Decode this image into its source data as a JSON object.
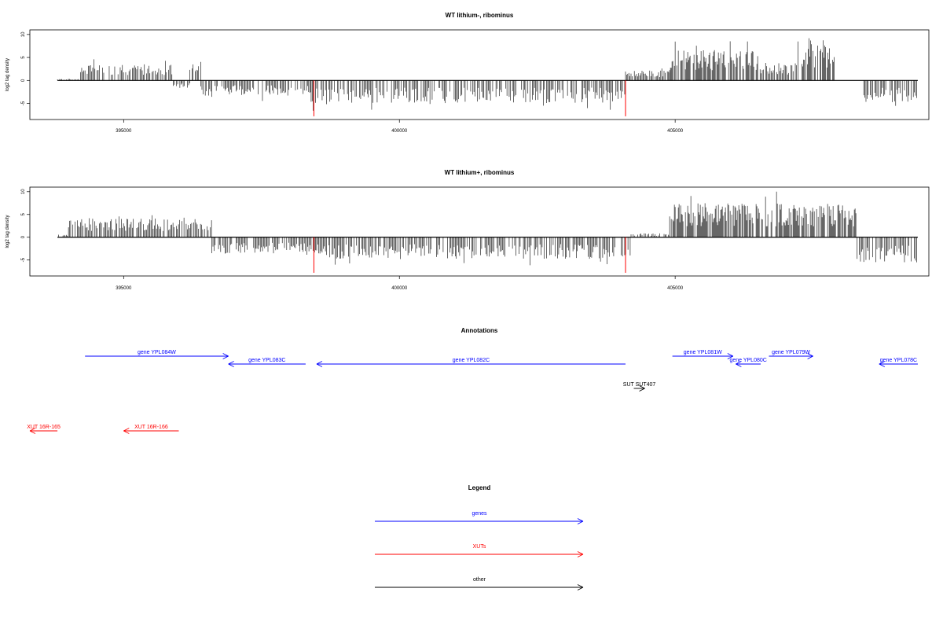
{
  "colors": {
    "gene": "#0000ff",
    "xut": "#ff0000",
    "other": "#000000",
    "marker": "#ff0000"
  },
  "chart_data": [
    {
      "type": "bar",
      "title": "WT lithium-, ribominus",
      "ylabel": "log2 tag density",
      "xlim": [
        393300,
        409600
      ],
      "ylim": [
        -8.5,
        11
      ],
      "x_ticks": [
        395000,
        400000,
        405000
      ],
      "y_ticks": [
        -5,
        0,
        5,
        10
      ],
      "baseline_range": [
        393800,
        409400
      ],
      "marker_lines": [
        {
          "x": 398450,
          "y": -7.8
        },
        {
          "x": 404100,
          "y": -7.8
        }
      ],
      "series": [
        {
          "x_start": 393800,
          "x_end": 394200,
          "envelope": 0.3
        },
        {
          "x_start": 394200,
          "x_end": 395900,
          "envelope": 3.2
        },
        {
          "x_start": 395900,
          "x_end": 396200,
          "envelope": -1.5
        },
        {
          "x_start": 396200,
          "x_end": 396400,
          "envelope": 4.3
        },
        {
          "x_start": 396400,
          "x_end": 398400,
          "envelope": -3.0
        },
        {
          "x_start": 398400,
          "x_end": 404100,
          "envelope": -4.5
        },
        {
          "x_start": 404100,
          "x_end": 404900,
          "envelope": 2.0
        },
        {
          "x_start": 404900,
          "x_end": 406500,
          "envelope": 6.0
        },
        {
          "x_start": 406500,
          "x_end": 407200,
          "envelope": 3.5
        },
        {
          "x_start": 407200,
          "x_end": 407900,
          "envelope": 8.0
        },
        {
          "x_start": 407900,
          "x_end": 408400,
          "envelope": 0.0
        },
        {
          "x_start": 408400,
          "x_end": 409400,
          "envelope": -4.3
        }
      ]
    },
    {
      "type": "bar",
      "title": "WT lithium+, ribominus",
      "ylabel": "log2 tag density",
      "xlim": [
        393300,
        409600
      ],
      "ylim": [
        -8.5,
        11
      ],
      "x_ticks": [
        395000,
        400000,
        405000
      ],
      "y_ticks": [
        -5,
        0,
        5,
        10
      ],
      "baseline_range": [
        393800,
        409400
      ],
      "marker_lines": [
        {
          "x": 398450,
          "y": -7.8
        },
        {
          "x": 404100,
          "y": -7.8
        }
      ],
      "series": [
        {
          "x_start": 393800,
          "x_end": 394000,
          "envelope": 0.5
        },
        {
          "x_start": 394000,
          "x_end": 396600,
          "envelope": 3.8
        },
        {
          "x_start": 396600,
          "x_end": 398300,
          "envelope": -3.2
        },
        {
          "x_start": 398300,
          "x_end": 404200,
          "envelope": -4.3
        },
        {
          "x_start": 404200,
          "x_end": 404900,
          "envelope": 0.8
        },
        {
          "x_start": 404900,
          "x_end": 408300,
          "envelope": 6.8
        },
        {
          "x_start": 408300,
          "x_end": 409400,
          "envelope": -5.0
        }
      ]
    }
  ],
  "annotations": {
    "title": "Annotations",
    "features": [
      {
        "label": "gene YPL084W",
        "start": 394300,
        "end": 396900,
        "dir": "+",
        "kind": "gene",
        "row": 0
      },
      {
        "label": "gene YPL083C",
        "start": 396900,
        "end": 398300,
        "dir": "-",
        "kind": "gene",
        "row": 1
      },
      {
        "label": "gene YPL082C",
        "start": 398500,
        "end": 404100,
        "dir": "-",
        "kind": "gene",
        "row": 1
      },
      {
        "label": "gene YPL081W",
        "start": 404950,
        "end": 406050,
        "dir": "+",
        "kind": "gene",
        "row": 0
      },
      {
        "label": "gene YPL080C",
        "start": 406100,
        "end": 406550,
        "dir": "-",
        "kind": "gene",
        "row": 1
      },
      {
        "label": "gene YPL079W",
        "start": 406700,
        "end": 407500,
        "dir": "+",
        "kind": "gene",
        "row": 0
      },
      {
        "label": "gene YPL078C",
        "start": 408700,
        "end": 409400,
        "dir": "-",
        "kind": "gene",
        "row": 1
      },
      {
        "label": "SUT SUT407",
        "start": 404250,
        "end": 404450,
        "dir": "+",
        "kind": "other",
        "row": 2
      },
      {
        "label": "XUT 16R-165",
        "start": 393300,
        "end": 393800,
        "dir": "-",
        "kind": "xut",
        "row": 3
      },
      {
        "label": "XUT 16R-166",
        "start": 395000,
        "end": 396000,
        "dir": "-",
        "kind": "xut",
        "row": 3
      }
    ]
  },
  "legend": {
    "title": "Legend",
    "items": [
      {
        "label": "genes",
        "kind": "gene"
      },
      {
        "label": "XUTs",
        "kind": "xut"
      },
      {
        "label": "other",
        "kind": "other"
      }
    ]
  }
}
